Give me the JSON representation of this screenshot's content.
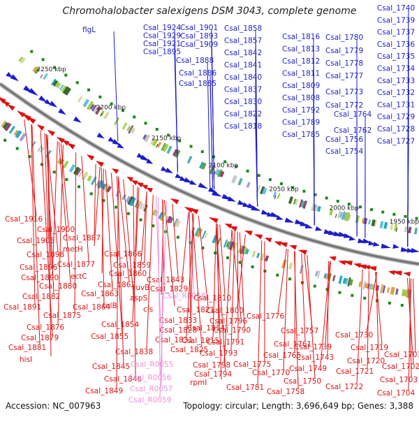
{
  "title": "Chromohalobacter salexigens DSM 3043, complete genome",
  "footer": {
    "accession": "Accession: NC_007963",
    "stats": "Topology: circular; Length: 3,696,649 bp; Genes: 3,388"
  },
  "ticks": [
    "2250 kbp",
    "2200 kbp",
    "2150 kbp",
    "2100 kbp",
    "2050 kbp",
    "2000 kbp",
    "1950 kbp"
  ],
  "colors": {
    "forward": "#1d1dcc",
    "reverse": "#e01010",
    "rna": "#f090d8",
    "backbone": "#888888"
  },
  "labels_top": [
    "flgL",
    "Csal_1924",
    "Csal_1929",
    "Csal_1921",
    "Csal_1895",
    "Csal_1901",
    "Csal_1893",
    "Csal_1909",
    "Csal_1888",
    "Csal_1886",
    "Csal_1885",
    "Csal_1858",
    "Csal_1857",
    "Csal_1842",
    "Csal_1841",
    "Csal_1840",
    "Csal_1837",
    "Csal_1830",
    "Csal_1822",
    "Csal_1818",
    "Csal_1816",
    "Csal_1813",
    "Csal_1812",
    "Csal_1811",
    "Csal_1809",
    "Csal_1808",
    "Csal_1792",
    "Csal_1789",
    "Csal_1785",
    "Csal_1780",
    "Csal_1779",
    "Csal_1778",
    "Csal_1777",
    "Csal_1773",
    "Csal_1772",
    "Csal_1764",
    "Csal_1762",
    "Csal_1756",
    "Csal_1754",
    "Csal_1740",
    "Csal_1739",
    "Csal_1737",
    "Csal_1736",
    "Csal_1735",
    "Csal_1734",
    "Csal_1733",
    "Csal_1732",
    "Csal_1731",
    "Csal_1729",
    "Csal_1728",
    "Csal_1727"
  ],
  "labels_bottom": [
    "Csal_1916",
    "Csal_1900",
    "Csal_1905",
    "Csal_1887",
    "metH",
    "Csal_1898",
    "Csal_1877",
    "Csal_1896",
    "ectC",
    "Csal_1890",
    "Csal_1880",
    "Csal_1882",
    "Csal_1891",
    "Csal_1875",
    "Csal_1876",
    "Csal_1879",
    "Csal_1881",
    "hisI",
    "Csal_1866",
    "Csal_1860",
    "Csal_1862",
    "Csal_1863",
    "Csal_1864",
    "Csal_1859",
    "Csal_1854",
    "Csal_1855",
    "Csal_1845",
    "Csal_1846",
    "Csal_1849",
    "Csal_1838",
    "tolB",
    "Csal_1843",
    "ruvB",
    "aspS",
    "Csal_1829",
    "cls",
    "Csal_R0058",
    "Csal_1833",
    "Csal_1828",
    "Csal_1831",
    "Csal_1825",
    "Csal_R0055",
    "Csal_R0056",
    "Csal_R0057",
    "Csal_R0059",
    "Csal_1821",
    "Csal_1810",
    "Csal_1814",
    "Csal_1815",
    "Csal_1800",
    "Csal_1796",
    "Csal_1790",
    "Csal_1791",
    "Csal_1793",
    "Csal_1798",
    "Csal_1794",
    "rpmI",
    "Csal_1775",
    "Csal_1781",
    "Csal_1776",
    "Csal_1757",
    "Csal_1761",
    "Csal_1765",
    "Csal_1770",
    "Csal_1749",
    "Csal_1750",
    "Csal_1758",
    "Csal_1743",
    "Csal_1739",
    "Csal_1730",
    "Csal_1719",
    "Csal_1720",
    "Csal_1721",
    "Csal_1722",
    "Csal_1701",
    "Csal_1702",
    "Csal_1703",
    "Csal_1704"
  ]
}
